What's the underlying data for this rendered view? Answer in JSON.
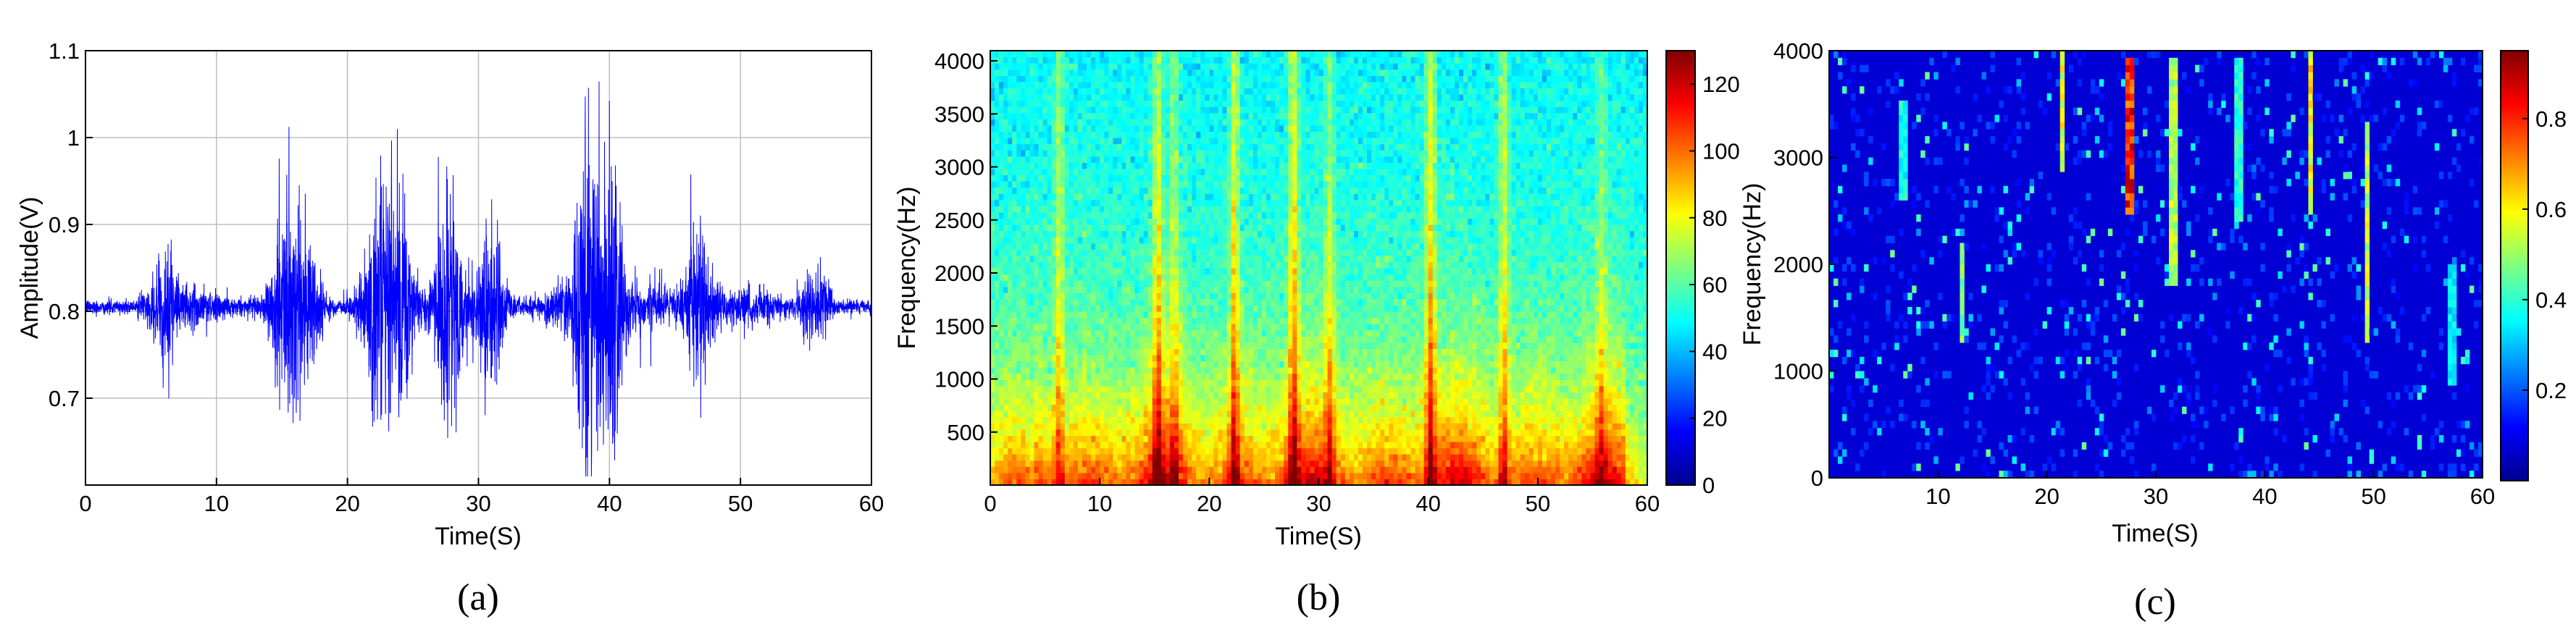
{
  "chart_data": [
    {
      "type": "line",
      "panel_label": "(a)",
      "xlabel": "Time(S)",
      "ylabel": "Amplitude(V)",
      "xlim": [
        0,
        60
      ],
      "ylim": [
        0.6,
        1.1
      ],
      "xticks": [
        0,
        10,
        20,
        30,
        40,
        50,
        60
      ],
      "yticks": [
        0.7,
        0.8,
        0.9,
        1,
        1.1
      ],
      "ytick_labels": [
        "0.7",
        "0.8",
        "0.9",
        "1",
        "1.1"
      ],
      "grid": true,
      "line_color": "#0000ff",
      "baseline": 0.805,
      "bursts": [
        {
          "t": 6.2,
          "amp": 0.075
        },
        {
          "t": 15.3,
          "amp": 0.12
        },
        {
          "t": 16.8,
          "amp": 0.1
        },
        {
          "t": 22.3,
          "amp": 0.14
        },
        {
          "t": 24.0,
          "amp": 0.13
        },
        {
          "t": 27.6,
          "amp": 0.15
        },
        {
          "t": 31.0,
          "amp": 0.1
        },
        {
          "t": 38.4,
          "amp": 0.24
        },
        {
          "t": 40.2,
          "amp": 0.2
        },
        {
          "t": 46.9,
          "amp": 0.12
        },
        {
          "t": 55.5,
          "amp": 0.035
        }
      ]
    },
    {
      "type": "heatmap",
      "panel_label": "(b)",
      "xlabel": "Time(S)",
      "ylabel": "Frequency(Hz)",
      "xlim": [
        0,
        60
      ],
      "ylim": [
        0,
        4096
      ],
      "xticks": [
        0,
        10,
        20,
        30,
        40,
        50,
        60
      ],
      "yticks": [
        500,
        1000,
        1500,
        2000,
        2500,
        3000,
        3500,
        4000
      ],
      "colorbar": {
        "min": 0,
        "max": 130,
        "ticks": [
          0,
          20,
          40,
          60,
          80,
          100,
          120
        ]
      },
      "colormap": "jet",
      "background_level": 48,
      "low_freq_level": 118,
      "bands": [
        {
          "t": 6.3,
          "level": 72
        },
        {
          "t": 15.3,
          "level": 80
        },
        {
          "t": 16.8,
          "level": 70
        },
        {
          "t": 22.3,
          "level": 82
        },
        {
          "t": 27.7,
          "level": 84
        },
        {
          "t": 31.0,
          "level": 72
        },
        {
          "t": 40.2,
          "level": 86
        },
        {
          "t": 46.9,
          "level": 78
        },
        {
          "t": 55.8,
          "level": 65
        }
      ]
    },
    {
      "type": "heatmap",
      "panel_label": "(c)",
      "xlabel": "Time(S)",
      "ylabel": "Frequency(Hz)",
      "xlim": [
        0,
        60
      ],
      "ylim": [
        0,
        4000
      ],
      "xticks": [
        10,
        20,
        30,
        40,
        50,
        60
      ],
      "yticks": [
        0,
        1000,
        2000,
        3000,
        4000
      ],
      "colorbar": {
        "min": 0,
        "max": 0.95,
        "ticks": [
          0.2,
          0.4,
          0.6,
          0.8
        ]
      },
      "colormap": "jet",
      "time_bins": 150,
      "freq_bins": 60,
      "background_level": 0.08,
      "streaks": [
        {
          "t": 12.3,
          "f0": 1300,
          "f1": 2200,
          "level": 0.55
        },
        {
          "t": 21.4,
          "f0": 2900,
          "f1": 4000,
          "level": 0.65
        },
        {
          "t": 27.6,
          "f0": 2500,
          "f1": 3900,
          "level": 0.92
        },
        {
          "t": 31.6,
          "f0": 1800,
          "f1": 3900,
          "level": 0.6
        },
        {
          "t": 44.3,
          "f0": 2500,
          "f1": 4000,
          "level": 0.68
        },
        {
          "t": 49.3,
          "f0": 1300,
          "f1": 3300,
          "level": 0.62
        },
        {
          "t": 37.6,
          "f0": 2400,
          "f1": 3900,
          "level": 0.45
        },
        {
          "t": 6.8,
          "f0": 2600,
          "f1": 3500,
          "level": 0.42
        },
        {
          "t": 57.2,
          "f0": 900,
          "f1": 2000,
          "level": 0.38
        }
      ]
    }
  ]
}
